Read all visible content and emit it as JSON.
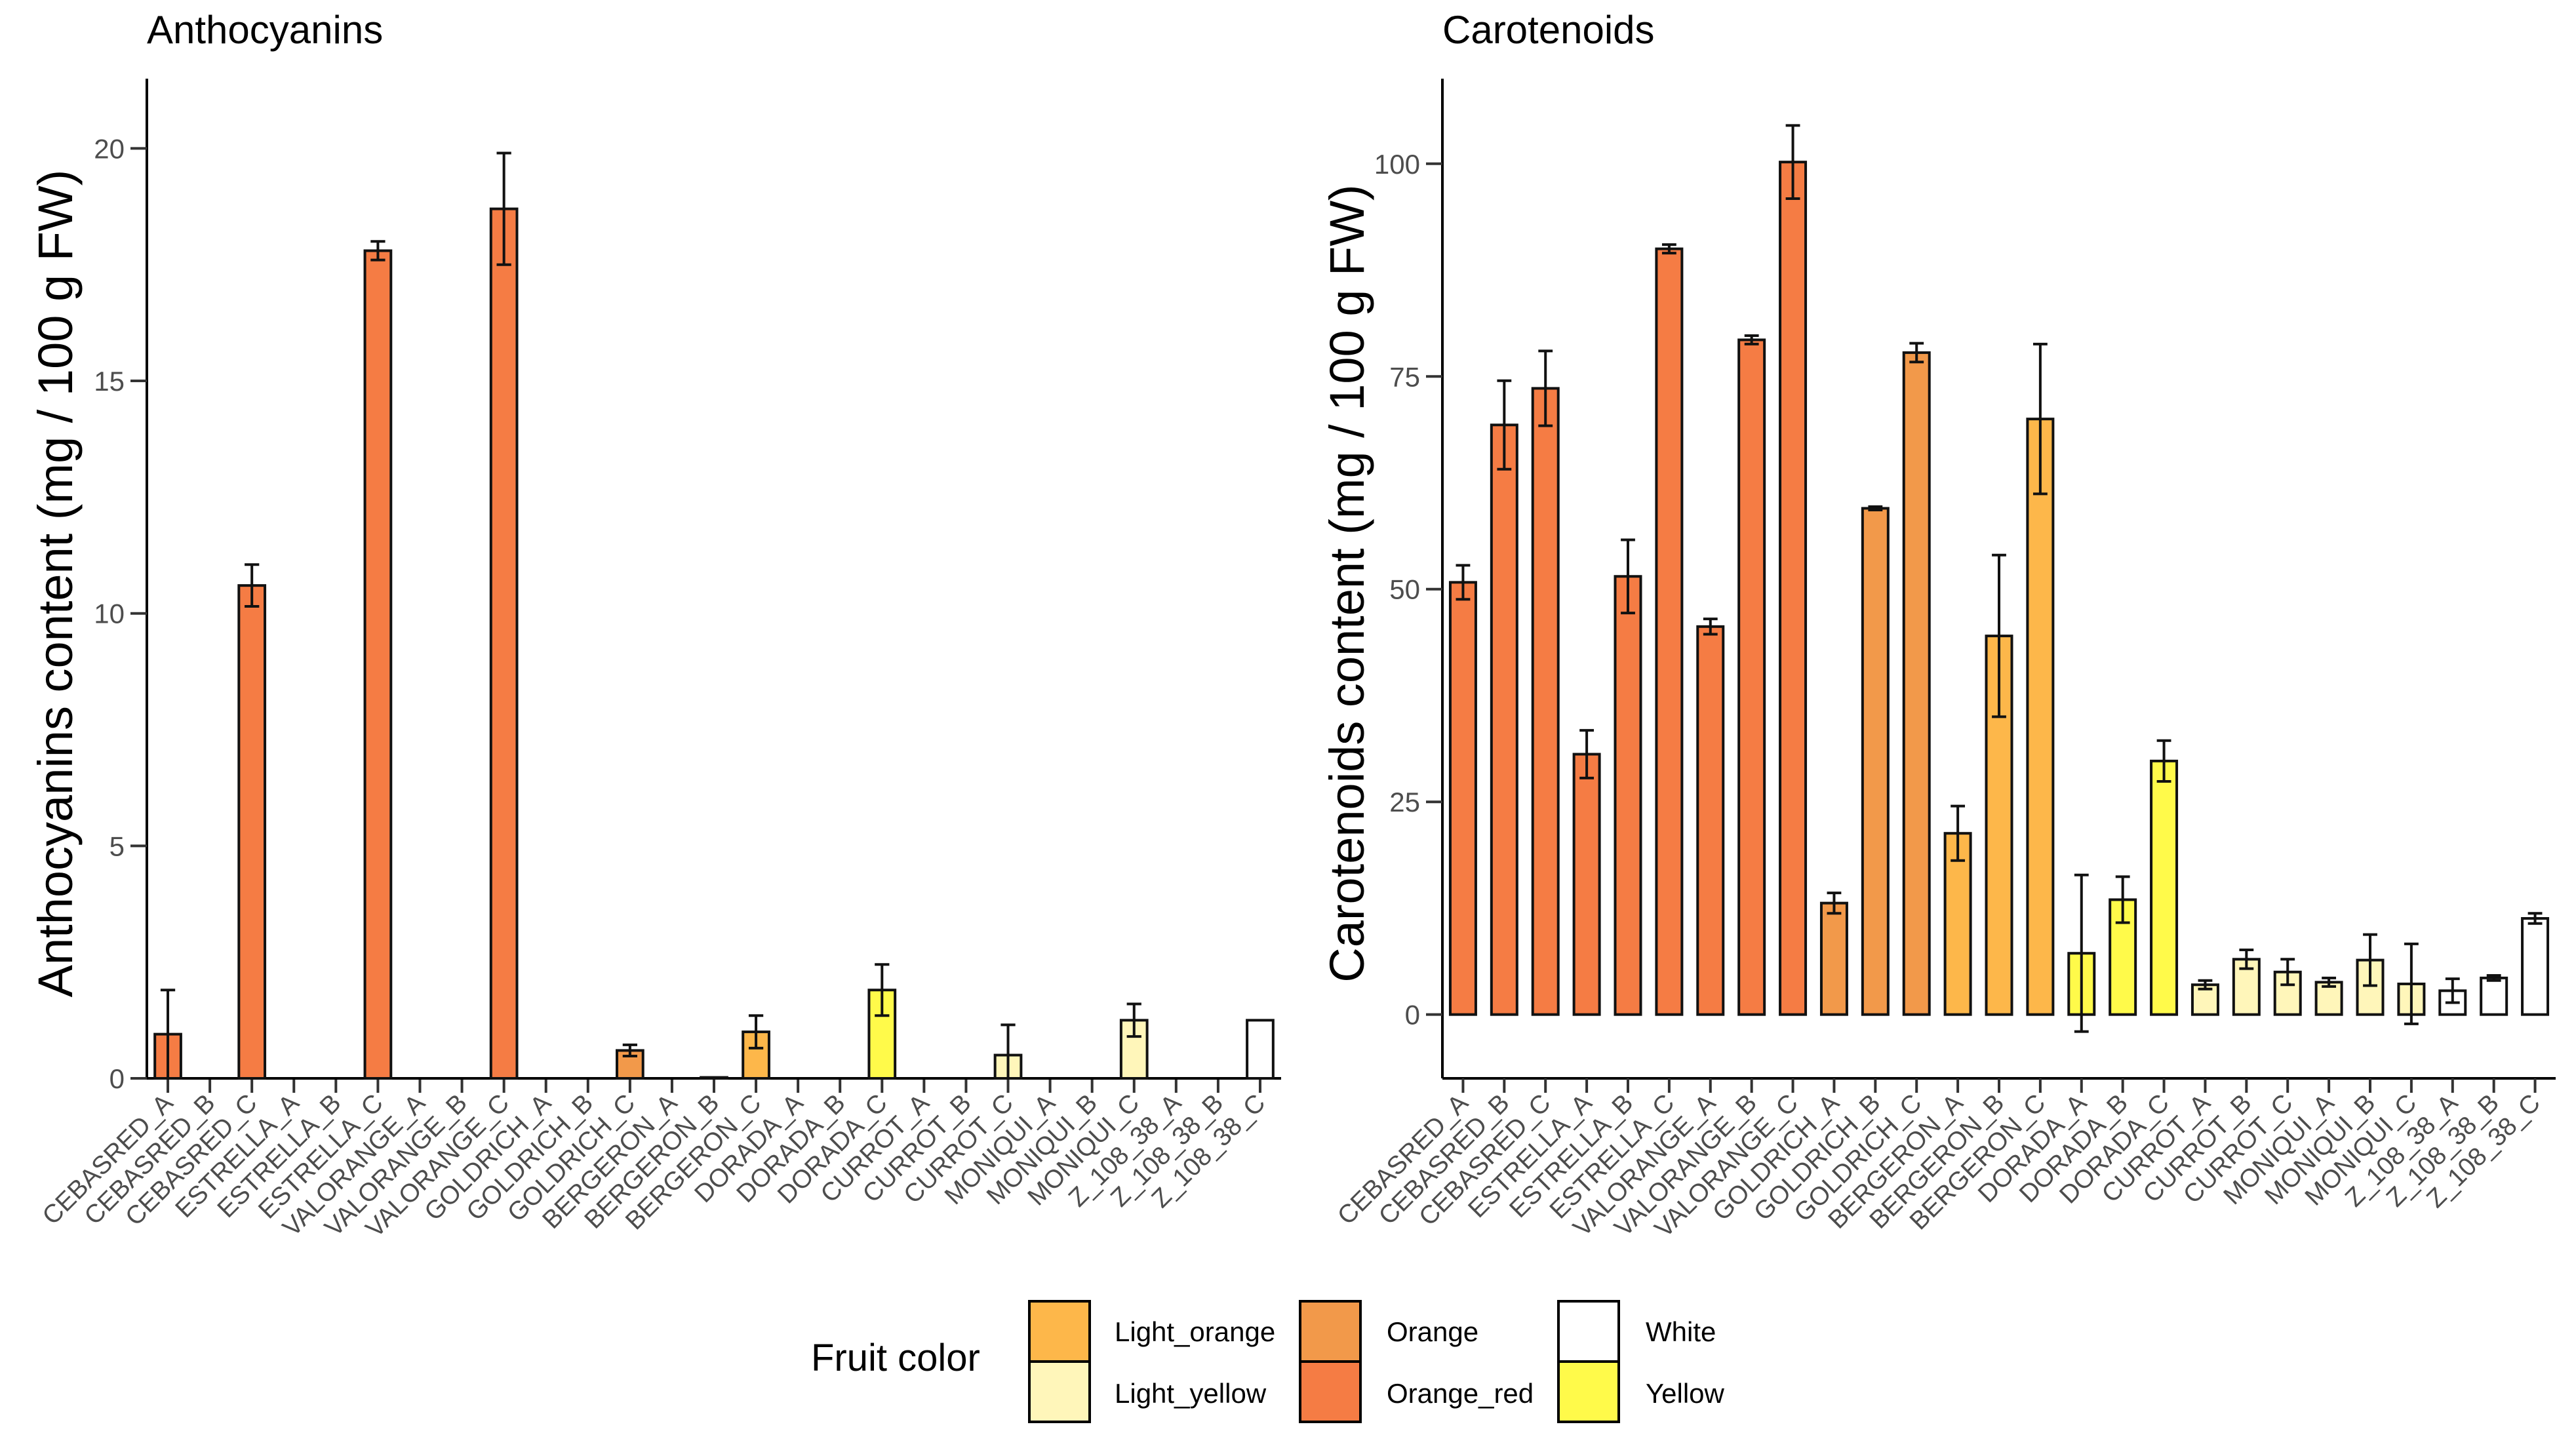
{
  "legend": {
    "title": "Fruit color",
    "items": [
      {
        "label": "Light_orange",
        "color": "#FDB74A"
      },
      {
        "label": "Light_yellow",
        "color": "#FFF6BA"
      },
      {
        "label": "Orange",
        "color": "#F2994A"
      },
      {
        "label": "Orange_red",
        "color": "#F57C44"
      },
      {
        "label": "White",
        "color": "#FFFFFF"
      },
      {
        "label": "Yellow",
        "color": "#FFFA4A"
      }
    ]
  },
  "chart_data": [
    {
      "type": "bar",
      "title": "Anthocyanins",
      "xlabel": "",
      "ylabel": "Anthocyanins content (mg / 100 g FW)",
      "ylim": [
        0,
        21.5
      ],
      "yticks": [
        0,
        5,
        10,
        15,
        20
      ],
      "grid": false,
      "categories": [
        "CEBASRED_A",
        "CEBASRED_B",
        "CEBASRED_C",
        "ESTRELLA_A",
        "ESTRELLA_B",
        "ESTRELLA_C",
        "VALORANGE_A",
        "VALORANGE_B",
        "VALORANGE_C",
        "GOLDRICH_A",
        "GOLDRICH_B",
        "GOLDRICH_C",
        "BERGERON_A",
        "BERGERON_B",
        "BERGERON_C",
        "DORADA_A",
        "DORADA_B",
        "DORADA_C",
        "CURROT_A",
        "CURROT_B",
        "CURROT_C",
        "MONIQUI_A",
        "MONIQUI_B",
        "MONIQUI_C",
        "Z_108_38_A",
        "Z_108_38_B",
        "Z_108_38_C"
      ],
      "values": [
        0.95,
        0,
        10.6,
        0,
        0,
        17.8,
        0,
        0,
        18.7,
        0,
        0,
        0.6,
        0,
        0.02,
        1.0,
        0,
        0,
        1.9,
        0,
        0,
        0.5,
        0,
        0,
        1.25,
        0,
        0,
        1.25
      ],
      "errors": [
        0.95,
        0,
        0.45,
        0,
        0,
        0.2,
        0,
        0,
        1.2,
        0,
        0,
        0.12,
        0,
        0,
        0.35,
        0,
        0,
        0.55,
        0,
        0,
        0.65,
        0,
        0,
        0.35,
        0,
        0,
        0
      ],
      "fruit_color": [
        "Orange_red",
        "Orange_red",
        "Orange_red",
        "Orange_red",
        "Orange_red",
        "Orange_red",
        "Orange_red",
        "Orange_red",
        "Orange_red",
        "Orange",
        "Orange",
        "Orange",
        "Light_orange",
        "Light_orange",
        "Light_orange",
        "Yellow",
        "Yellow",
        "Yellow",
        "Light_yellow",
        "Light_yellow",
        "Light_yellow",
        "Light_yellow",
        "Light_yellow",
        "Light_yellow",
        "White",
        "White",
        "White"
      ],
      "zero_dashed": true
    },
    {
      "type": "bar",
      "title": "Carotenoids",
      "xlabel": "",
      "ylabel": "Carotenoids content (mg / 100 g FW)",
      "ylim": [
        -7.5,
        110
      ],
      "yticks": [
        0,
        25,
        50,
        75,
        100
      ],
      "grid": false,
      "categories": [
        "CEBASRED_A",
        "CEBASRED_B",
        "CEBASRED_C",
        "ESTRELLA_A",
        "ESTRELLA_B",
        "ESTRELLA_C",
        "VALORANGE_A",
        "VALORANGE_B",
        "VALORANGE_C",
        "GOLDRICH_A",
        "GOLDRICH_B",
        "GOLDRICH_C",
        "BERGERON_A",
        "BERGERON_B",
        "BERGERON_C",
        "DORADA_A",
        "DORADA_B",
        "DORADA_C",
        "CURROT_A",
        "CURROT_B",
        "CURROT_C",
        "MONIQUI_A",
        "MONIQUI_B",
        "MONIQUI_C",
        "Z_108_38_A",
        "Z_108_38_B",
        "Z_108_38_C"
      ],
      "values": [
        50.8,
        69.3,
        73.6,
        30.6,
        51.5,
        90.0,
        45.6,
        79.3,
        100.2,
        13.1,
        59.5,
        77.8,
        21.3,
        44.5,
        70.0,
        7.2,
        13.5,
        29.8,
        3.5,
        6.5,
        5.0,
        3.8,
        6.4,
        3.6,
        2.8,
        4.3,
        11.3
      ],
      "errors": [
        2.0,
        5.2,
        4.4,
        2.8,
        4.3,
        0.5,
        0.9,
        0.5,
        4.3,
        1.2,
        0.2,
        1.1,
        3.2,
        9.5,
        8.8,
        9.2,
        2.7,
        2.4,
        0.5,
        1.1,
        1.5,
        0.5,
        3.0,
        4.7,
        1.4,
        0.3,
        0.6
      ],
      "fruit_color": [
        "Orange_red",
        "Orange_red",
        "Orange_red",
        "Orange_red",
        "Orange_red",
        "Orange_red",
        "Orange_red",
        "Orange_red",
        "Orange_red",
        "Orange",
        "Orange",
        "Orange",
        "Light_orange",
        "Light_orange",
        "Light_orange",
        "Yellow",
        "Yellow",
        "Yellow",
        "Light_yellow",
        "Light_yellow",
        "Light_yellow",
        "Light_yellow",
        "Light_yellow",
        "Light_yellow",
        "White",
        "White",
        "White"
      ],
      "zero_dashed": false
    }
  ]
}
